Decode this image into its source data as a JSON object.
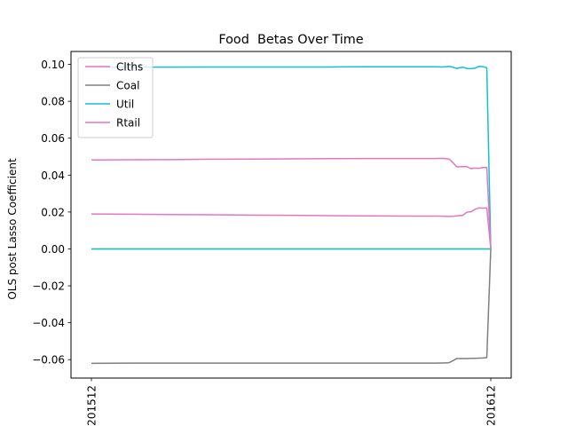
{
  "chart_data": {
    "type": "line",
    "title": "Food  Betas Over Time",
    "xlabel": "",
    "ylabel": "OLS post Lasso Coefficient",
    "x_ticks": [
      "201512",
      "201612"
    ],
    "y_ticks": [
      "0.10",
      "0.08",
      "0.06",
      "0.04",
      "0.02",
      "0.00",
      "−0.02",
      "−0.04",
      "−0.06"
    ],
    "ylim": [
      -0.07,
      0.107
    ],
    "grid": false,
    "legend_position": "top-left",
    "x": [
      0,
      0.1,
      0.2,
      0.3,
      0.4,
      0.5,
      0.6,
      0.7,
      0.8,
      0.86,
      0.88,
      0.895,
      0.9,
      0.915,
      0.93,
      0.94,
      0.95,
      0.96,
      0.97,
      0.98,
      0.99,
      1.0
    ],
    "series": [
      {
        "name": "Clths",
        "color": "#e377c2",
        "in_legend": true,
        "values": [
          0.0189,
          0.0188,
          0.0186,
          0.0185,
          0.0183,
          0.0182,
          0.018,
          0.0179,
          0.0178,
          0.0178,
          0.0177,
          0.0176,
          0.0176,
          0.0179,
          0.0182,
          0.0199,
          0.0201,
          0.0214,
          0.0222,
          0.0221,
          0.0222,
          0.0
        ]
      },
      {
        "name": "Coal",
        "color": "#7f7f7f",
        "in_legend": true,
        "values": [
          -0.062,
          -0.0619,
          -0.0619,
          -0.0619,
          -0.0619,
          -0.0619,
          -0.0619,
          -0.0619,
          -0.0619,
          -0.0619,
          -0.0618,
          -0.0617,
          -0.0612,
          -0.0594,
          -0.0594,
          -0.0594,
          -0.0593,
          -0.0593,
          -0.0592,
          -0.0591,
          -0.0589,
          0.0
        ]
      },
      {
        "name": "Util",
        "color": "#17becf",
        "in_legend": true,
        "values": [
          0.0985,
          0.0985,
          0.0985,
          0.0986,
          0.0986,
          0.0986,
          0.0986,
          0.0987,
          0.0987,
          0.0987,
          0.0986,
          0.0989,
          0.0988,
          0.0978,
          0.0985,
          0.0978,
          0.0977,
          0.0979,
          0.0989,
          0.0988,
          0.0982,
          0.0
        ]
      },
      {
        "name": "Rtail",
        "color": "#e377c2",
        "in_legend": true,
        "values": [
          0.0482,
          0.0483,
          0.0484,
          0.0486,
          0.0487,
          0.0488,
          0.0489,
          0.049,
          0.049,
          0.049,
          0.0491,
          0.0487,
          0.0479,
          0.0445,
          0.0446,
          0.0446,
          0.0435,
          0.0438,
          0.0436,
          0.0441,
          0.0442,
          0.0
        ]
      },
      {
        "name": "",
        "color": "#bcbd22",
        "in_legend": false,
        "values": [
          0.0,
          0.0,
          0.0,
          0.0,
          0.0,
          0.0,
          0.0,
          0.0,
          0.0,
          0.0,
          0.0,
          0.0,
          0.0,
          0.0,
          0.0,
          0.0,
          0.0,
          0.0,
          0.0,
          0.0,
          0.0,
          0.0
        ]
      },
      {
        "name": "",
        "color": "#17becf",
        "in_legend": false,
        "values": [
          0.0,
          0.0,
          0.0,
          0.0,
          0.0,
          0.0,
          0.0,
          0.0,
          0.0,
          0.0,
          0.0,
          0.0,
          0.0,
          0.0,
          0.0,
          0.0,
          0.0,
          0.0,
          0.0,
          0.0,
          0.0,
          0.0
        ]
      }
    ]
  }
}
